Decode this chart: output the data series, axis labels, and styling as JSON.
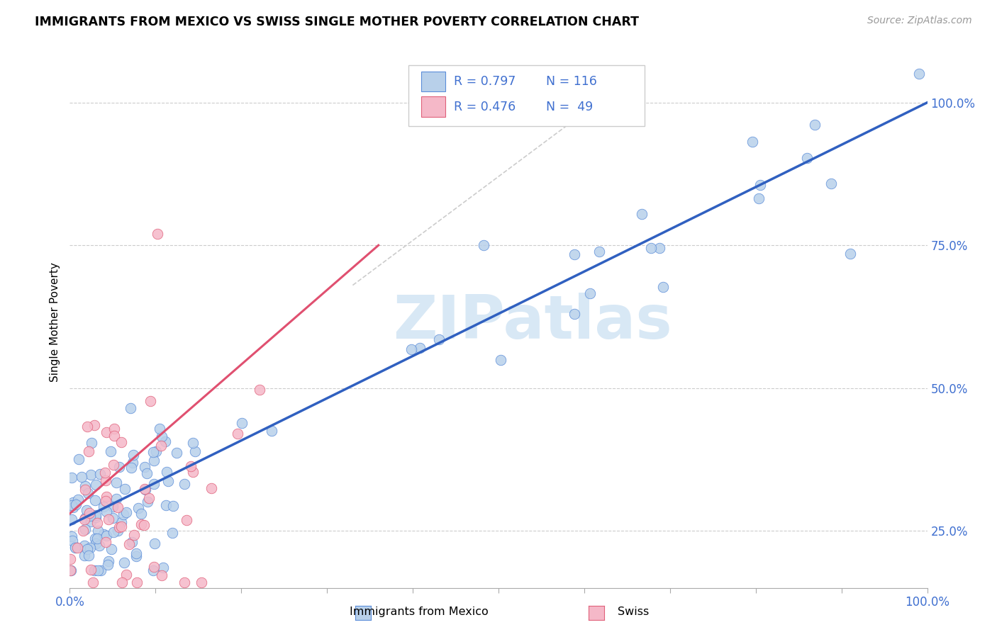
{
  "title": "IMMIGRANTS FROM MEXICO VS SWISS SINGLE MOTHER POVERTY CORRELATION CHART",
  "source": "Source: ZipAtlas.com",
  "ylabel": "Single Mother Poverty",
  "legend_R_blue": "R = 0.797",
  "legend_N_blue": "N = 116",
  "legend_R_pink": "R = 0.476",
  "legend_N_pink": "N =  49",
  "legend_label_blue": "Immigrants from Mexico",
  "legend_label_pink": "Swiss",
  "blue_fill": "#b8d0ea",
  "blue_edge": "#5b8dd9",
  "pink_fill": "#f5b8c8",
  "pink_edge": "#e0607a",
  "blue_line_color": "#3060c0",
  "pink_line_color": "#e05070",
  "text_blue": "#4070d0",
  "watermark_color": "#d8e8f5",
  "grid_color": "#cccccc",
  "ytick_labels": [
    "25.0%",
    "50.0%",
    "75.0%",
    "100.0%"
  ],
  "ytick_values": [
    0.25,
    0.5,
    0.75,
    1.0
  ],
  "xlim": [
    0.0,
    1.0
  ],
  "ylim": [
    0.15,
    1.08
  ],
  "blue_line": [
    0.0,
    1.0,
    0.26,
    1.0
  ],
  "pink_line": [
    0.0,
    0.36,
    0.28,
    0.75
  ],
  "diag_line": [
    0.33,
    0.58,
    0.68,
    0.96
  ]
}
